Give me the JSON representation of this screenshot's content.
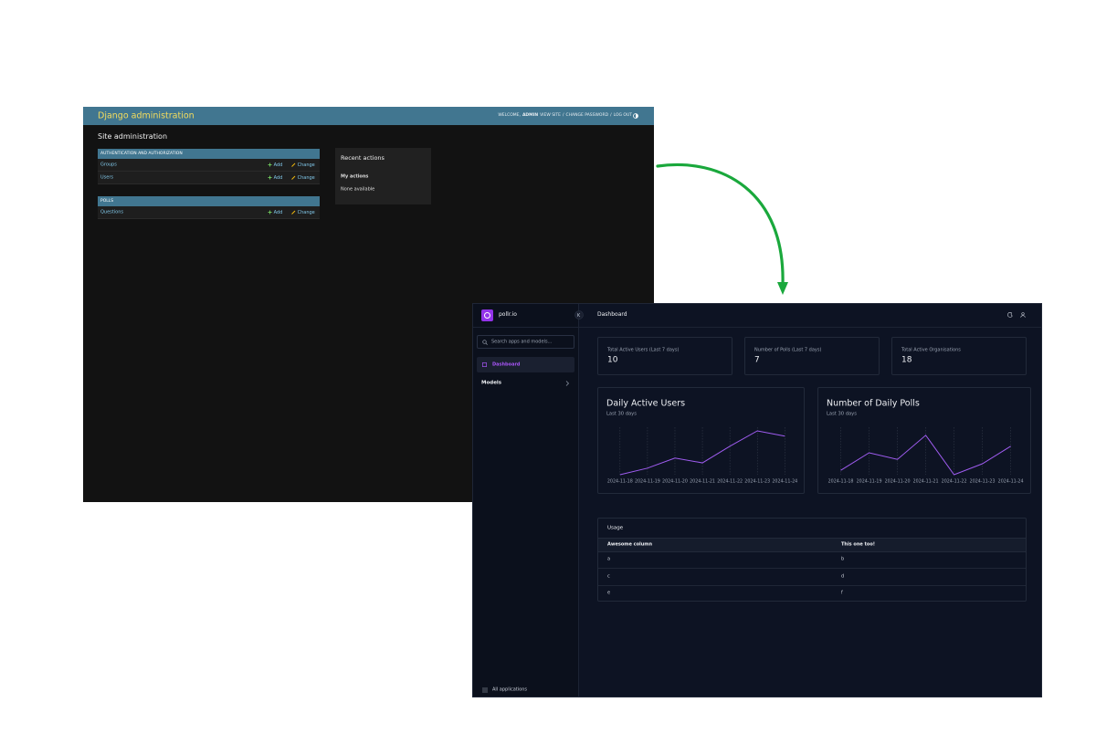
{
  "django": {
    "branding": "Django administration",
    "user_tools": {
      "welcome": "WELCOME,",
      "user": "ADMIN",
      "view_site": "VIEW SITE",
      "change_password": "CHANGE PASSWORD",
      "log_out": "LOG OUT",
      "separator": "/"
    },
    "title": "Site administration",
    "modules": [
      {
        "caption": "AUTHENTICATION AND AUTHORIZATION",
        "rows": [
          {
            "name": "Groups",
            "add": "Add",
            "change": "Change"
          },
          {
            "name": "Users",
            "add": "Add",
            "change": "Change"
          }
        ]
      },
      {
        "caption": "POLLS",
        "rows": [
          {
            "name": "Questions",
            "add": "Add",
            "change": "Change"
          }
        ]
      }
    ],
    "recent": {
      "title": "Recent actions",
      "subtitle": "My actions",
      "empty": "None available"
    }
  },
  "unfold": {
    "brand": "pollr.io",
    "page_title": "Dashboard",
    "search": "Search apps and models...",
    "nav": {
      "dashboard": "Dashboard",
      "models": "Models",
      "footer": "All applications"
    },
    "kpis": [
      {
        "label": "Total Active Users (Last 7 days)",
        "value": 10
      },
      {
        "label": "Number of Polls (Last 7 days)",
        "value": 7
      },
      {
        "label": "Total Active Organisations",
        "value": 18
      }
    ],
    "table": {
      "title": "Usage",
      "headers": [
        "Awesome column",
        "This one too!"
      ],
      "rows": [
        [
          "a",
          "b"
        ],
        [
          "c",
          "d"
        ],
        [
          "e",
          "f"
        ]
      ]
    }
  },
  "chart_data": [
    {
      "type": "line",
      "title": "Daily Active Users",
      "subtitle": "Last 30 days",
      "categories": [
        "2024-11-18",
        "2024-11-19",
        "2024-11-20",
        "2024-11-21",
        "2024-11-22",
        "2024-11-23",
        "2024-11-24"
      ],
      "values": [
        0,
        1.5,
        3.8,
        2.7,
        6.5,
        10,
        8.8
      ],
      "color": "#9f5cf0",
      "ylim": [
        0,
        10
      ],
      "grid": true
    },
    {
      "type": "line",
      "title": "Number of Daily Polls",
      "subtitle": "Last 30 days",
      "categories": [
        "2024-11-18",
        "2024-11-19",
        "2024-11-20",
        "2024-11-21",
        "2024-11-22",
        "2024-11-23",
        "2024-11-24"
      ],
      "values": [
        1,
        5,
        3.5,
        9,
        0,
        2.5,
        6.5
      ],
      "color": "#9f5cf0",
      "ylim": [
        0,
        10
      ],
      "grid": true
    }
  ]
}
